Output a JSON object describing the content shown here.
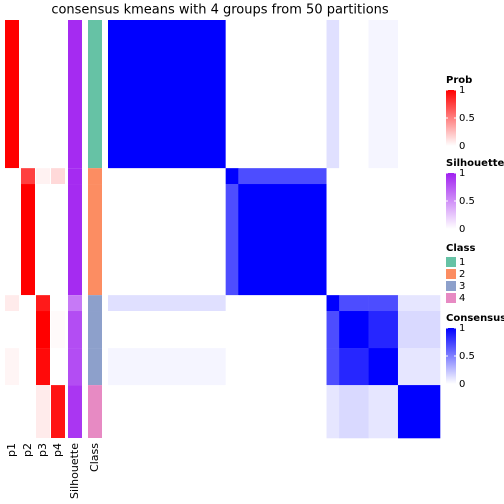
{
  "chart_data": {
    "type": "heatmap",
    "title": "consensus kmeans with 4 groups from 50 partitions",
    "segment_sizes": [
      28,
      3,
      21,
      3,
      7,
      7,
      10
    ],
    "prob": {
      "name": "Prob",
      "columns": [
        "p1",
        "p2",
        "p3",
        "p4"
      ],
      "color": "#ff0000",
      "lim": [
        0,
        1
      ],
      "ticks": [
        0,
        0.5,
        1
      ],
      "values": [
        [
          1,
          0,
          0,
          0
        ],
        [
          0,
          0.75,
          0.05,
          0.15
        ],
        [
          0,
          1,
          0,
          0
        ],
        [
          0.08,
          0,
          0.9,
          0
        ],
        [
          0,
          0,
          1,
          0.02
        ],
        [
          0.04,
          0,
          0.96,
          0
        ],
        [
          0,
          0,
          0.08,
          0.92
        ]
      ]
    },
    "silhouette": {
      "name": "Silhouette",
      "color": "#a020f0",
      "lim": [
        0,
        1
      ],
      "ticks": [
        0,
        0.5,
        1
      ],
      "values": [
        0.95,
        0.95,
        0.95,
        0.6,
        0.8,
        0.8,
        0.9
      ]
    },
    "class": {
      "name": "Class",
      "levels": [
        1,
        2,
        3,
        4
      ],
      "colors": [
        "#66c2a5",
        "#fc8d62",
        "#8da0cb",
        "#e78ac3"
      ],
      "values": [
        1,
        2,
        2,
        3,
        3,
        3,
        4
      ]
    },
    "consensus": {
      "name": "Consensus",
      "color": "#0000ff",
      "lim": [
        0,
        1
      ],
      "ticks": [
        0,
        0.5,
        1
      ],
      "matrix": [
        [
          1,
          0,
          0,
          0.12,
          0,
          0.04,
          0
        ],
        [
          0,
          1,
          0.7,
          0,
          0,
          0,
          0
        ],
        [
          0,
          0.7,
          1,
          0,
          0,
          0,
          0
        ],
        [
          0.12,
          0,
          0,
          1,
          0.7,
          0.7,
          0.1
        ],
        [
          0,
          0,
          0,
          0.7,
          1,
          0.85,
          0.15
        ],
        [
          0.04,
          0,
          0,
          0.7,
          0.85,
          1,
          0.1
        ],
        [
          0,
          0,
          0,
          0.1,
          0.15,
          0.1,
          1
        ]
      ]
    }
  }
}
